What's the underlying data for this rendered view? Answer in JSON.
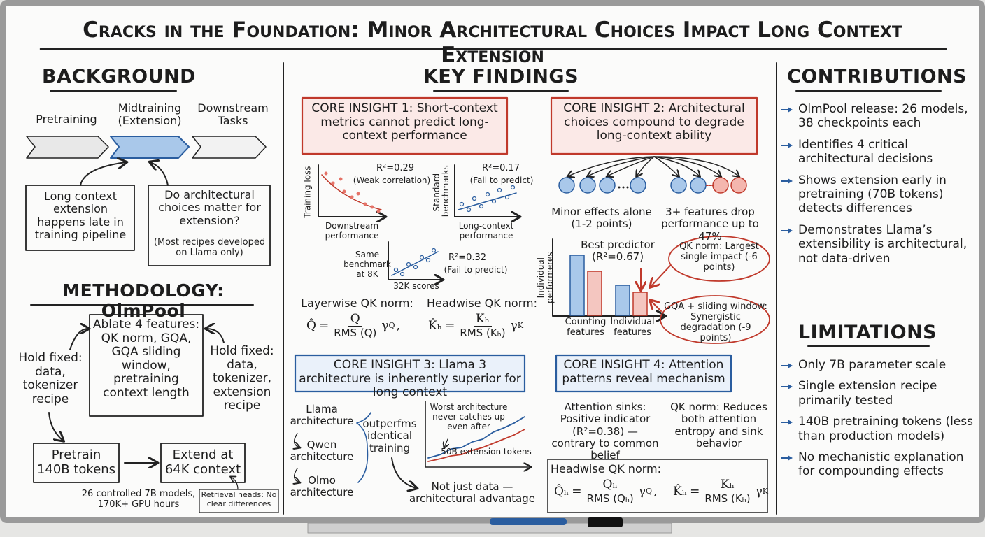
{
  "title": "Cracks in the Foundation: Minor Architectural Choices Impact Long Context Extension",
  "background": {
    "heading": "BACKGROUND",
    "stages": [
      "Pretraining",
      "Midtraining (Extension)",
      "Downstream Tasks"
    ],
    "note_left": "Long context extension happens late in training pipeline",
    "note_right": "Do architectural choices matter for extension?",
    "note_right_aside": "(Most recipes developed on Llama only)"
  },
  "methodology": {
    "heading": "METHODOLOGY: OlmPool",
    "ablate": "Ablate 4 features: QK norm, GQA, GQA sliding window, pretraining context length",
    "hold_left": "Hold fixed: data, tokenizer recipe",
    "hold_right": "Hold fixed: data, tokenizer, extension recipe",
    "pretrain": "Pretrain 140B tokens",
    "extend": "Extend at 64K context",
    "scale_note": "26 controlled 7B models, 170K+ GPU hours",
    "retrieval": "Retrieval heads: No clear differences"
  },
  "key_findings": {
    "heading": "KEY FINDINGS",
    "insight1": {
      "title": "CORE INSIGHT 1: Short-context metrics cannot predict long-context performance",
      "plots": [
        {
          "ylabel": "Training loss",
          "xlabel": "Downstream performance",
          "r2": "R²=0.29",
          "note": "(Weak correlation)"
        },
        {
          "ylabel": "Standard benchmarks",
          "xlabel": "Long-context performance",
          "r2": "R²=0.17",
          "note": "(Fail to predict)"
        },
        {
          "ylabel": "Same benchmark at 8K",
          "xlabel": "32K scores",
          "r2": "R²=0.32",
          "note": "(Fail to predict)"
        }
      ],
      "formulas": [
        {
          "label": "Layerwise QK norm:",
          "lhs": "Q̂",
          "op": "=",
          "num": "Q",
          "den": "RMS (Q)",
          "gamma": "γ",
          "sup": "Q",
          "tail": ","
        },
        {
          "label": "Headwise QK norm:",
          "lhs": "K̂ₕ",
          "op": "=",
          "num": "Kₕ",
          "den": "RMS (Kₕ)",
          "gamma": "γ",
          "sup": "K"
        }
      ]
    },
    "insight2": {
      "title": "CORE INSIGHT 2: Architectural choices compound to degrade long-context ability",
      "alone": "Minor effects alone (1-2 points)",
      "compound": "3+ features drop performance up to 47%",
      "ylabel": "Individual performeres",
      "categories": [
        "Counting features",
        "Individual features"
      ],
      "best": "Best predictor (R²=0.67)",
      "callout_qk": "QK norm: Largest single impact (-6 points)",
      "callout_gqa": "GQA + sliding window: Synergistic degradation (-9 points)"
    },
    "insight3": {
      "title": "CORE INSIGHT 3: Llama 3 architecture is inherently superior for long context",
      "architectures": [
        "Llama architecture",
        "Qwen architecture",
        "Olmo architecture"
      ],
      "claim": "outperfms identical training",
      "chart_note": "Worst architecture never catches up even after",
      "chart_axis": "50B extension tokens",
      "conclusion": "Not just data — architectural advantage"
    },
    "insight4": {
      "title": "CORE INSIGHT 4: Attention patterns reveal mechanism",
      "sinks": "Attention sinks: Positive indicator (R²=0.38) — contrary to common belief",
      "qk": "QK norm: Reduces both attention entropy and sink behavior",
      "formula_label": "Headwise QK norm:",
      "formulas": [
        {
          "lhs": "Q̂ₕ",
          "op": "=",
          "num": "Qₕ",
          "den": "RMS (Qₕ)",
          "gamma": "γ",
          "sup": "Q",
          "tail": ","
        },
        {
          "lhs": "K̂ₕ",
          "op": "=",
          "num": "Kₕ",
          "den": "RMS (Kₕ)",
          "gamma": "γ",
          "sup": "K"
        }
      ]
    }
  },
  "contributions": {
    "heading": "CONTRIBUTIONS",
    "items": [
      "OlmPool release: 26 models, 38 checkpoints each",
      "Identifies 4 critical architectural decisions",
      "Shows extension early in pretraining (70B tokens) detects differences",
      "Demonstrates Llama’s extensibility is architectural, not data-driven"
    ]
  },
  "limitations": {
    "heading": "LIMITATIONS",
    "items": [
      "Only 7B parameter scale",
      "Single extension recipe primarily tested",
      "140B pretraining tokens (less than production models)",
      "No mechanistic explanation for compounding effects"
    ]
  }
}
